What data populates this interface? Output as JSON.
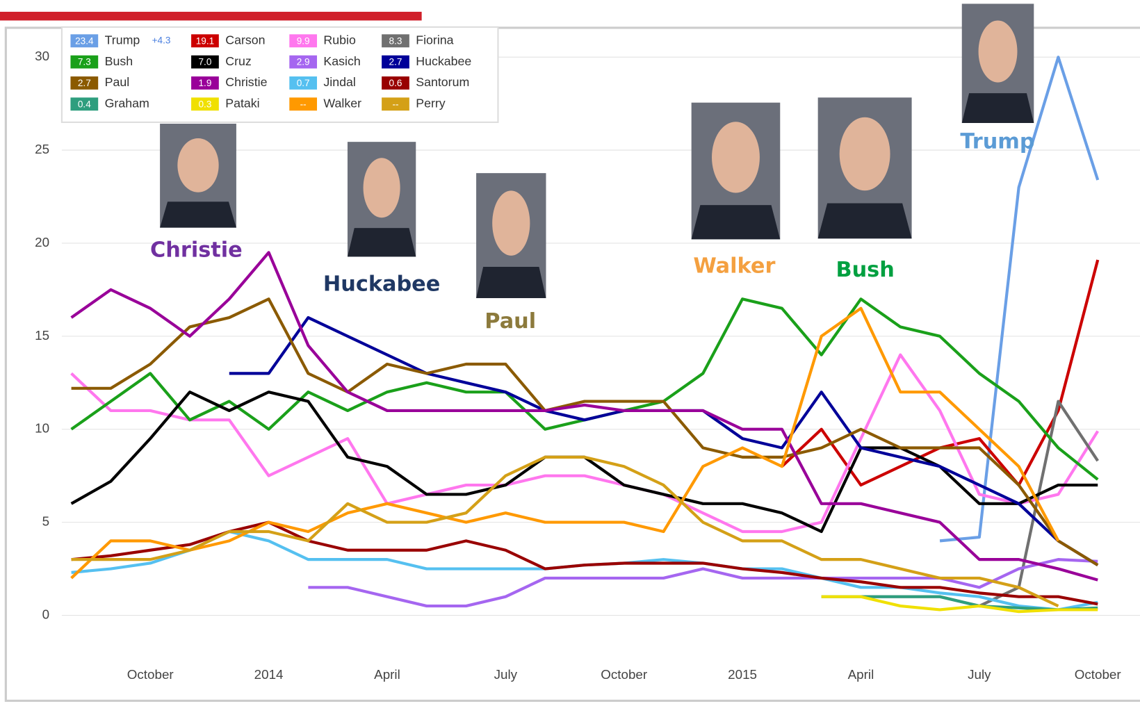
{
  "chart_data": {
    "type": "line",
    "categories": [
      null,
      null,
      "October",
      null,
      null,
      "2014",
      null,
      null,
      "April",
      null,
      null,
      "July",
      null,
      null,
      "October",
      null,
      null,
      "2015",
      null,
      null,
      "April",
      null,
      null,
      "July",
      null,
      null,
      "October"
    ],
    "ylim": [
      -1,
      31.5
    ],
    "yticks": [
      0,
      5,
      10,
      15,
      20,
      25,
      30
    ],
    "grid": true,
    "series": [
      {
        "name": "Trump",
        "color": "#6a9fe6",
        "legend_value": "23.4",
        "change": "+4.3",
        "values": [
          null,
          null,
          null,
          null,
          null,
          null,
          null,
          null,
          null,
          null,
          null,
          null,
          null,
          null,
          null,
          null,
          null,
          null,
          null,
          null,
          null,
          null,
          4,
          4.2,
          23,
          30,
          23.4
        ]
      },
      {
        "name": "Carson",
        "color": "#cc0000",
        "legend_value": "19.1",
        "values": [
          null,
          null,
          null,
          null,
          null,
          null,
          null,
          null,
          null,
          null,
          null,
          null,
          null,
          null,
          null,
          null,
          null,
          null,
          8,
          10,
          7,
          8,
          9,
          9.5,
          7,
          11,
          19.1
        ]
      },
      {
        "name": "Rubio",
        "color": "#ff77ee",
        "legend_value": "9.9",
        "values": [
          13,
          11,
          11,
          10.5,
          10.5,
          7.5,
          8.5,
          9.5,
          6,
          6.5,
          7,
          7,
          7.5,
          7.5,
          7,
          6.5,
          5.5,
          4.5,
          4.5,
          5,
          9.5,
          14,
          11,
          6.5,
          6,
          6.5,
          9.9
        ]
      },
      {
        "name": "Fiorina",
        "color": "#707070",
        "legend_value": "8.3",
        "values": [
          null,
          null,
          null,
          null,
          null,
          null,
          null,
          null,
          null,
          null,
          null,
          null,
          null,
          null,
          null,
          null,
          null,
          null,
          null,
          null,
          1,
          1,
          1,
          0.5,
          1.5,
          11.5,
          8.3
        ]
      },
      {
        "name": "Bush",
        "color": "#1aa01a",
        "legend_value": "7.3",
        "values": [
          10,
          11.5,
          13,
          10.5,
          11.5,
          10,
          12,
          11,
          12,
          12.5,
          12,
          12,
          10,
          10.5,
          11,
          11.5,
          13,
          17,
          16.5,
          14,
          17,
          15.5,
          15,
          13,
          11.5,
          9,
          7.3
        ]
      },
      {
        "name": "Cruz",
        "color": "#000000",
        "legend_value": "7.0",
        "values": [
          6,
          7.2,
          9.5,
          12,
          11,
          12,
          11.5,
          8.5,
          8,
          6.5,
          6.5,
          7,
          8.5,
          8.5,
          7,
          6.5,
          6,
          6,
          5.5,
          4.5,
          9,
          9,
          8,
          6,
          6,
          7,
          7.0
        ]
      },
      {
        "name": "Kasich",
        "color": "#a566f0",
        "legend_value": "2.9",
        "values": [
          null,
          null,
          null,
          null,
          null,
          null,
          1.5,
          1.5,
          1,
          0.5,
          0.5,
          1,
          2,
          2,
          2,
          2,
          2.5,
          2,
          2,
          2,
          2,
          2,
          2,
          1.5,
          2.5,
          3,
          2.9
        ]
      },
      {
        "name": "Huckabee",
        "color": "#000099",
        "legend_value": "2.7",
        "values": [
          null,
          null,
          null,
          null,
          13,
          13,
          16,
          15,
          14,
          13,
          12.5,
          12,
          11,
          10.5,
          11,
          11,
          11,
          9.5,
          9,
          12,
          9,
          8.5,
          8,
          7,
          6,
          4,
          2.7
        ]
      },
      {
        "name": "Paul",
        "color": "#8b5a00",
        "legend_value": "2.7",
        "values": [
          12.2,
          12.2,
          13.5,
          15.5,
          16,
          17,
          13,
          12,
          13.5,
          13,
          13.5,
          13.5,
          11,
          11.5,
          11.5,
          11.5,
          9,
          8.5,
          8.5,
          9,
          10,
          9,
          9,
          9,
          7,
          4,
          2.7
        ]
      },
      {
        "name": "Christie",
        "color": "#990099",
        "legend_value": "1.9",
        "values": [
          16,
          17.5,
          16.5,
          15,
          17,
          19.5,
          14.5,
          12,
          11,
          11,
          11,
          11,
          11,
          11.3,
          11,
          11,
          11,
          10,
          10,
          6,
          6,
          5.5,
          5,
          3,
          3,
          2.5,
          1.9
        ]
      },
      {
        "name": "Jindal",
        "color": "#55c0f0",
        "legend_value": "0.7",
        "values": [
          2.3,
          2.5,
          2.8,
          3.5,
          4.5,
          4,
          3,
          3,
          3,
          2.5,
          2.5,
          2.5,
          2.5,
          2.7,
          2.8,
          3,
          2.8,
          2.5,
          2.5,
          2,
          1.5,
          1.5,
          1.2,
          1,
          0.5,
          0.3,
          0.7
        ]
      },
      {
        "name": "Santorum",
        "color": "#990000",
        "legend_value": "0.6",
        "values": [
          3,
          3.2,
          3.5,
          3.8,
          4.5,
          5,
          4,
          3.5,
          3.5,
          3.5,
          4,
          3.5,
          2.5,
          2.7,
          2.8,
          2.8,
          2.8,
          2.5,
          2.3,
          2,
          1.8,
          1.5,
          1.5,
          1.2,
          1,
          1,
          0.6
        ]
      },
      {
        "name": "Graham",
        "color": "#2e9e7e",
        "legend_value": "0.4",
        "values": [
          null,
          null,
          null,
          null,
          null,
          null,
          null,
          null,
          null,
          null,
          null,
          null,
          null,
          null,
          null,
          null,
          null,
          null,
          null,
          1,
          1,
          1,
          1,
          0.5,
          0.4,
          0.3,
          0.4
        ]
      },
      {
        "name": "Pataki",
        "color": "#f0e000",
        "legend_value": "0.3",
        "values": [
          null,
          null,
          null,
          null,
          null,
          null,
          null,
          null,
          null,
          null,
          null,
          null,
          null,
          null,
          null,
          null,
          null,
          null,
          null,
          1,
          1,
          0.5,
          0.3,
          0.5,
          0.2,
          0.3,
          0.3
        ]
      },
      {
        "name": "Walker",
        "color": "#ff9900",
        "legend_value": "--",
        "values": [
          2,
          4,
          4,
          3.5,
          4,
          5,
          4.5,
          5.5,
          6,
          5.5,
          5,
          5.5,
          5,
          5,
          5,
          4.5,
          8,
          9,
          8,
          15,
          16.5,
          12,
          12,
          10,
          8,
          4,
          null
        ]
      },
      {
        "name": "Perry",
        "color": "#d4a017",
        "legend_value": "--",
        "values": [
          3,
          3,
          3,
          3.5,
          4.5,
          4.5,
          4,
          6,
          5,
          5,
          5.5,
          7.5,
          8.5,
          8.5,
          8,
          7,
          5,
          4,
          4,
          3,
          3,
          2.5,
          2,
          2,
          1.5,
          0.5,
          null
        ]
      }
    ],
    "annotations": [
      {
        "text": "Christie",
        "color": "#7030a0"
      },
      {
        "text": "Huckabee",
        "color": "#1f3864"
      },
      {
        "text": "Paul",
        "color": "#8c7a3c"
      },
      {
        "text": "Walker",
        "color": "#f4a040"
      },
      {
        "text": "Bush",
        "color": "#00a040"
      },
      {
        "text": "Trump",
        "color": "#5b9bd5"
      }
    ]
  }
}
